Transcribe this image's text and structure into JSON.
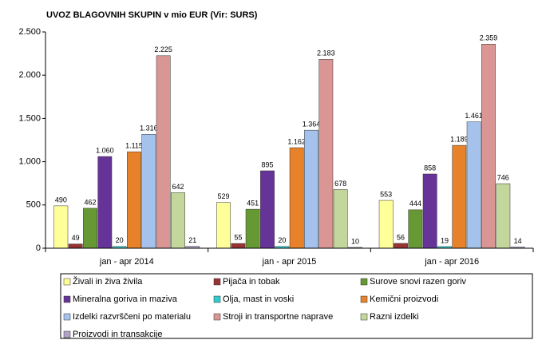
{
  "chart_data": {
    "type": "bar",
    "title": "UVOZ BLAGOVNIH SKUPIN v mio EUR (Vir: SURS)",
    "categories": [
      "jan - apr 2014",
      "jan - apr 2015",
      "jan - apr 2016"
    ],
    "ylim": [
      0,
      2500
    ],
    "yticks": [
      0,
      500,
      {
        "value": 1000,
        "label": "1.000"
      },
      {
        "value": 1500,
        "label": "1.500"
      },
      {
        "value": 2000,
        "label": "2.000"
      },
      {
        "value": 2500,
        "label": "2.500"
      }
    ],
    "grid": false,
    "legend": "bottom",
    "series": [
      {
        "name": "Živali in živa živila",
        "color": "#ffff99",
        "values": [
          490,
          529,
          553
        ]
      },
      {
        "name": "Pijača in tobak",
        "color": "#993333",
        "values": [
          49,
          55,
          56
        ]
      },
      {
        "name": "Surove snovi razen goriv",
        "color": "#669933",
        "values": [
          462,
          451,
          444
        ]
      },
      {
        "name": "Mineralna goriva in maziva",
        "color": "#663399",
        "values": [
          1060,
          895,
          858
        ],
        "value_labels": [
          "1.060",
          "895",
          "858"
        ]
      },
      {
        "name": "Olja, mast in voski",
        "color": "#33cccc",
        "values": [
          20,
          20,
          19
        ]
      },
      {
        "name": "Kemični proizvodi",
        "color": "#e8822a",
        "values": [
          1115,
          1162,
          1189
        ],
        "value_labels": [
          "1.115",
          "1.162",
          "1.189"
        ]
      },
      {
        "name": "Izdelki razvrščeni po materialu",
        "color": "#a4c2ec",
        "values": [
          1316,
          1364,
          1461
        ],
        "value_labels": [
          "1.316",
          "1.364",
          "1.461"
        ]
      },
      {
        "name": "Stroji in transportne naprave",
        "color": "#d99694",
        "values": [
          2225,
          2183,
          2359
        ],
        "value_labels": [
          "2.225",
          "2.183",
          "2.359"
        ]
      },
      {
        "name": "Razni izdelki",
        "color": "#c3d69b",
        "values": [
          642,
          678,
          746
        ]
      },
      {
        "name": "Proizvodi in transakcije",
        "color": "#b3a2c7",
        "values": [
          21,
          10,
          14
        ]
      }
    ]
  }
}
